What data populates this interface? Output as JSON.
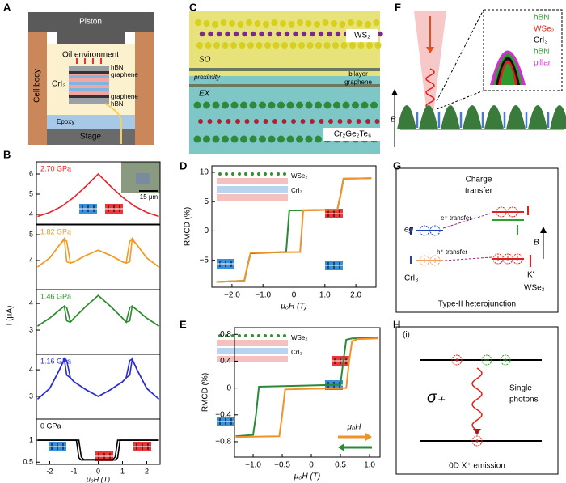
{
  "chart_data": [
    {
      "type": "line",
      "title": "2.70 GPa",
      "title_color": "#e8222a",
      "xlim": [
        -2.55,
        2.55
      ],
      "ylim": [
        3.52,
        6.6
      ],
      "yticks": [
        4,
        5,
        6
      ],
      "series": [
        {
          "color": "#e8222a",
          "x": [
            -2.5,
            -2,
            -1.5,
            -1,
            -0.5,
            0,
            0.5,
            1,
            1.5,
            2,
            2.5
          ],
          "values": [
            3.9,
            4.1,
            4.4,
            4.85,
            5.4,
            6.0,
            5.4,
            4.85,
            4.4,
            4.1,
            3.9
          ]
        }
      ]
    },
    {
      "type": "line",
      "title": "1.82 GPa",
      "title_color": "#f39a23",
      "xlim": [
        -2.55,
        2.55
      ],
      "ylim": [
        2.875,
        5.375
      ],
      "yticks": [
        4,
        5
      ],
      "series": [
        {
          "color": "#f39a23",
          "x": [
            -2.5,
            -2,
            -1.6,
            -1.4,
            -1.3,
            -1.15,
            -1,
            -0.5,
            0,
            0.5,
            1,
            1.15,
            1.3,
            1.4,
            1.6,
            2,
            2.5
          ],
          "values": [
            3.75,
            4.1,
            4.6,
            4.85,
            3.95,
            3.9,
            3.95,
            4.2,
            4.4,
            4.2,
            3.95,
            3.9,
            3.95,
            4.85,
            4.6,
            4.1,
            3.75
          ]
        },
        {
          "color": "#f39a23",
          "x": [
            -2.5,
            -2,
            -1.6,
            -1.4,
            -1.3,
            -1.15,
            -1,
            -0.5,
            0,
            0.5,
            1,
            1.15,
            1.3,
            1.4,
            1.6,
            2,
            2.5
          ],
          "values": [
            3.75,
            4.1,
            4.6,
            4.8,
            4.75,
            3.9,
            3.95,
            4.2,
            4.4,
            4.2,
            3.95,
            3.9,
            4.75,
            4.8,
            4.6,
            4.1,
            3.75
          ]
        }
      ]
    },
    {
      "type": "line",
      "title": "1.46 GPa",
      "title_color": "#2e8b2e",
      "xlim": [
        -2.55,
        2.55
      ],
      "ylim": [
        2.09,
        4.52
      ],
      "yticks": [
        3,
        4
      ],
      "series": [
        {
          "color": "#2e8b2e",
          "x": [
            -2.5,
            -2,
            -1.6,
            -1.4,
            -1.3,
            -1.15,
            -1,
            -0.5,
            0,
            0.5,
            1,
            1.15,
            1.3,
            1.4,
            1.6,
            2,
            2.5
          ],
          "values": [
            3.15,
            3.45,
            3.75,
            3.9,
            3.35,
            3.3,
            3.45,
            3.9,
            4.3,
            3.9,
            3.45,
            3.3,
            3.35,
            3.9,
            3.75,
            3.45,
            3.15
          ]
        },
        {
          "color": "#2e8b2e",
          "x": [
            -2.5,
            -2,
            -1.6,
            -1.4,
            -1.3,
            -1.15,
            -1,
            -0.5,
            0,
            0.5,
            1,
            1.15,
            1.3,
            1.4,
            1.6,
            2,
            2.5
          ],
          "values": [
            3.15,
            3.45,
            3.75,
            3.9,
            3.85,
            3.3,
            3.45,
            3.9,
            4.3,
            3.9,
            3.45,
            3.3,
            3.85,
            3.9,
            3.75,
            3.45,
            3.15
          ]
        }
      ]
    },
    {
      "type": "line",
      "title": "1.16 GPa",
      "title_color": "#2b2bd0",
      "xlim": [
        -2.55,
        2.55
      ],
      "ylim": [
        2.15,
        4.58
      ],
      "yticks": [
        3,
        4
      ],
      "series": [
        {
          "color": "#2b2bd0",
          "x": [
            -2.5,
            -2,
            -1.6,
            -1.4,
            -1.3,
            -1.15,
            -1,
            -0.5,
            0,
            0.5,
            1,
            1.15,
            1.3,
            1.4,
            1.6,
            2,
            2.5
          ],
          "values": [
            2.9,
            3.3,
            4.0,
            4.4,
            3.8,
            3.7,
            3.55,
            3.25,
            3.0,
            3.25,
            3.55,
            3.7,
            3.8,
            4.4,
            4.0,
            3.3,
            2.9
          ]
        },
        {
          "color": "#2b2bd0",
          "x": [
            -2.5,
            -2,
            -1.6,
            -1.4,
            -1.3,
            -1.15,
            -1,
            -0.5,
            0,
            0.5,
            1,
            1.15,
            1.3,
            1.4,
            1.6,
            2,
            2.5
          ],
          "values": [
            2.9,
            3.3,
            4.0,
            4.4,
            4.35,
            3.7,
            3.55,
            3.25,
            3.0,
            3.25,
            3.55,
            3.7,
            4.35,
            4.4,
            4.0,
            3.3,
            2.9
          ]
        }
      ]
    },
    {
      "type": "line",
      "title": "0 GPa",
      "title_color": "#000000",
      "xlim": [
        -2.55,
        2.55
      ],
      "ylim": [
        0.45,
        1.48
      ],
      "yticks": [
        0.5,
        1
      ],
      "xticks": [
        -2,
        -1,
        0,
        1,
        2
      ],
      "xlabel": "μ₀H (T)",
      "series": [
        {
          "color": "#000000",
          "x": [
            -2.5,
            -1,
            -0.9,
            -0.8,
            -0.7,
            0,
            0.7,
            0.8,
            0.9,
            1,
            2.5
          ],
          "values": [
            1,
            1,
            1,
            0.6,
            0.55,
            0.55,
            0.55,
            0.6,
            1,
            1,
            1
          ]
        },
        {
          "color": "#000000",
          "x": [
            -2.5,
            -0.8,
            -0.7,
            -0.6,
            0,
            0.6,
            0.7,
            0.8,
            2.5
          ],
          "values": [
            1,
            1,
            0.62,
            0.56,
            0.56,
            0.56,
            0.62,
            1,
            1
          ]
        }
      ]
    },
    {
      "type": "line",
      "xlim": [
        -2.65,
        2.65
      ],
      "ylim": [
        -9.6,
        11.1
      ],
      "xticks": [
        {
          "value": -2,
          "label": "−2.0"
        },
        {
          "value": -1,
          "label": "−1.0"
        },
        0,
        {
          "value": 1,
          "label": "1.0"
        },
        {
          "value": 2,
          "label": "2.0"
        }
      ],
      "yticks": [
        {
          "value": -5,
          "label": "−5"
        },
        0,
        5,
        10
      ],
      "xlabel": "μ₀H (T)",
      "ylabel": "RMCD (%)",
      "series": [
        {
          "color": "#2a8a3a",
          "x": [
            2.5,
            1.6,
            1.5,
            1.4,
            -0.15,
            -0.25,
            -1.4,
            -1.5,
            -1.6,
            -2.5
          ],
          "values": [
            9,
            8.9,
            6,
            3.6,
            3.5,
            -3.6,
            -3.8,
            -6,
            -8.5,
            -8.7
          ]
        },
        {
          "color": "#f0922a",
          "x": [
            -2.5,
            -1.6,
            -1.5,
            -1.4,
            0.2,
            0.3,
            1.4,
            1.5,
            1.6,
            2.5
          ],
          "values": [
            -8.7,
            -8.5,
            -6,
            -3.7,
            -3.6,
            3.5,
            3.6,
            6,
            8.9,
            9
          ]
        }
      ]
    },
    {
      "type": "line",
      "xlim": [
        -1.32,
        1.18
      ],
      "ylim": [
        -1.03,
        0.9
      ],
      "xticks": [
        {
          "value": -1,
          "label": "−1.0"
        },
        {
          "value": -0.5,
          "label": "−0.5"
        },
        0,
        0.5,
        {
          "value": 1,
          "label": "1.0"
        }
      ],
      "yticks": [
        {
          "value": -0.8,
          "label": "−0.8"
        },
        {
          "value": -0.4,
          "label": "−0.4"
        },
        0,
        0.4,
        0.8
      ],
      "xlabel": "μ₀H (T)",
      "ylabel": "RMCD (%)",
      "legend_label": "μ₀H",
      "series": [
        {
          "color": "#2a8a3a",
          "x": [
            1.15,
            0.7,
            0.6,
            0.55,
            0.5,
            -0.9,
            -0.95,
            -1.0,
            -1.3
          ],
          "values": [
            0.75,
            0.74,
            0.72,
            0.4,
            0.05,
            0.02,
            -0.4,
            -0.7,
            -0.72
          ]
        },
        {
          "color": "#f0922a",
          "x": [
            -1.3,
            -0.55,
            -0.5,
            -0.45,
            0.6,
            0.65,
            0.7,
            0.8,
            1.15
          ],
          "values": [
            -0.73,
            -0.72,
            -0.4,
            -0.02,
            0.0,
            0.4,
            0.7,
            0.73,
            0.74
          ]
        }
      ]
    }
  ],
  "panels": {
    "A": {
      "letter": "A",
      "piston": "Piston",
      "oil": "Oil environment",
      "cell_body": "Cell body",
      "layers": [
        "hBN",
        "graphene",
        "graphene",
        "hBN"
      ],
      "crystal": "CrI₃",
      "epoxy": "Epoxy",
      "stage": "Stage"
    },
    "B": {
      "letter": "B",
      "ylabel": "I (μA)",
      "scale_bar": "15 μm"
    },
    "C": {
      "letter": "C",
      "top": "WS₂",
      "so": "SO",
      "proximity": "proximity",
      "middle": [
        "bilayer",
        "graphene"
      ],
      "ex": "EX",
      "bottom": "Cr₂Ge₂Te₆"
    },
    "D": {
      "letter": "D",
      "inset": [
        "WSe₂",
        "CrI₃"
      ]
    },
    "E": {
      "letter": "E",
      "inset": [
        "WSe₂",
        "CrI₃"
      ]
    },
    "F": {
      "letter": "F",
      "field": "B",
      "stack": [
        "hBN",
        "WSe₂",
        "CrI₃",
        "hBN",
        "pillar"
      ]
    },
    "G": {
      "letter": "G",
      "title": [
        "Charge",
        "transfer"
      ],
      "electron": "e⁻ transfer",
      "hole": "h⁺ transfer",
      "band": "eg",
      "field": "B",
      "valley": "K′",
      "left": "CrI₃",
      "right": "WSe₂",
      "caption": "Type-II heterojunction"
    },
    "H": {
      "letter": "H",
      "index": "(i)",
      "polarization": "σ₊",
      "photons": [
        "Single",
        "photons"
      ],
      "caption": "0D X⁺ emission"
    }
  }
}
